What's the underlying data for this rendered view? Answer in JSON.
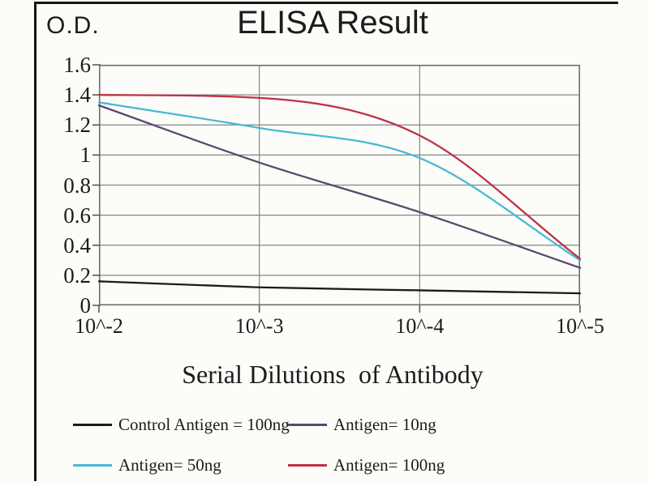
{
  "header": {
    "od_label": "O.D.",
    "title": "ELISA Result"
  },
  "chart_data": {
    "type": "line",
    "title": "ELISA Result",
    "ylabel": "O.D.",
    "xlabel": "Serial Dilutions  of Antibody",
    "categories": [
      "10^-2",
      "10^-3",
      "10^-4",
      "10^-5"
    ],
    "ylim": [
      0,
      1.6
    ],
    "ytick_labels": [
      "1.6",
      "1.4",
      "1.2",
      "1",
      "0.8",
      "0.6",
      "0.4",
      "0.2",
      "0"
    ],
    "grid": true,
    "legend_position": "bottom",
    "series": [
      {
        "name": "Control Antigen = 100ng",
        "color": "#1b1b1b",
        "values": [
          0.16,
          0.12,
          0.1,
          0.08
        ]
      },
      {
        "name": "Antigen= 10ng",
        "color": "#57496f",
        "values": [
          1.33,
          0.95,
          0.62,
          0.25
        ]
      },
      {
        "name": "Antigen= 50ng",
        "color": "#47b9d6",
        "values": [
          1.35,
          1.18,
          0.98,
          0.3
        ]
      },
      {
        "name": "Antigen= 100ng",
        "color": "#bd3143",
        "values": [
          1.4,
          1.38,
          1.13,
          0.31
        ]
      }
    ],
    "legend_rows": [
      [
        0,
        1
      ],
      [
        2,
        3
      ]
    ]
  },
  "colors": {
    "grid": "#858585",
    "frame": "#6e6e6e",
    "tick": "#4f4f4f",
    "text": "#1c1c1c",
    "border": "#141414",
    "background": "#fcfcf9"
  }
}
